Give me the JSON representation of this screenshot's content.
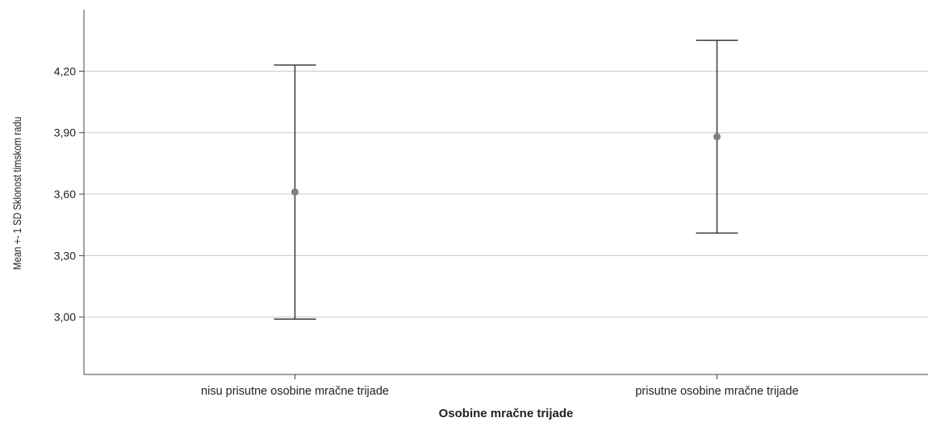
{
  "chart_data": {
    "type": "errorbar",
    "xlabel": "Osobine mračne trijade",
    "ylabel": "Mean +- 1 SD Sklonost timskom radu",
    "categories": [
      "nisu prisutne osobine mračne trijade",
      "prisutne osobine mračne trijade"
    ],
    "series": [
      {
        "mean": [
          3.61,
          3.88
        ],
        "lower": [
          2.99,
          3.41
        ],
        "upper": [
          4.23,
          4.35
        ]
      }
    ],
    "yticks": [
      "3,00",
      "3,30",
      "3,60",
      "3,90",
      "4,20"
    ],
    "ytick_values": [
      3.0,
      3.3,
      3.6,
      3.9,
      4.2
    ],
    "ylim": [
      2.72,
      4.5
    ],
    "grid": "horizontal",
    "colors": {
      "gridline": "#c8c8c8",
      "bar": "#3a3a3a",
      "point": "#7f7f7f",
      "axis": "#444444"
    }
  }
}
